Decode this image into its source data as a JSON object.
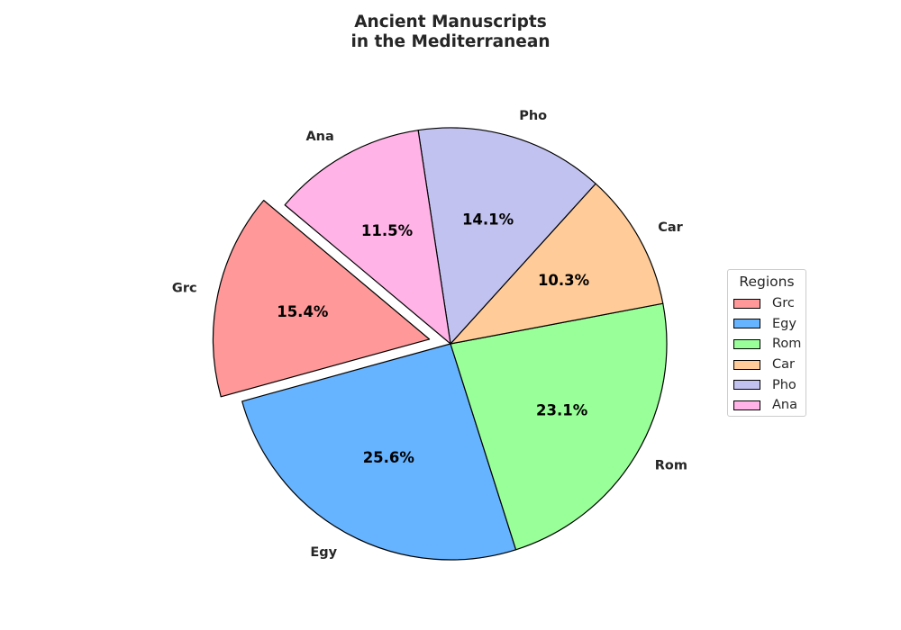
{
  "chart_data": {
    "type": "pie",
    "title_lines": [
      "Ancient Manuscripts",
      "in the Mediterranean"
    ],
    "slices": [
      {
        "label": "Grc",
        "value": 15.4,
        "color": "#ff9999",
        "exploded": true
      },
      {
        "label": "Egy",
        "value": 25.6,
        "color": "#66b3ff",
        "exploded": false
      },
      {
        "label": "Rom",
        "value": 23.1,
        "color": "#99ff99",
        "exploded": false
      },
      {
        "label": "Car",
        "value": 10.3,
        "color": "#ffcc99",
        "exploded": false
      },
      {
        "label": "Pho",
        "value": 14.1,
        "color": "#c2c2f0",
        "exploded": false
      },
      {
        "label": "Ana",
        "value": 11.5,
        "color": "#ffb3e6",
        "exploded": false
      }
    ],
    "legend": {
      "title": "Regions",
      "placement": "center-right"
    }
  }
}
